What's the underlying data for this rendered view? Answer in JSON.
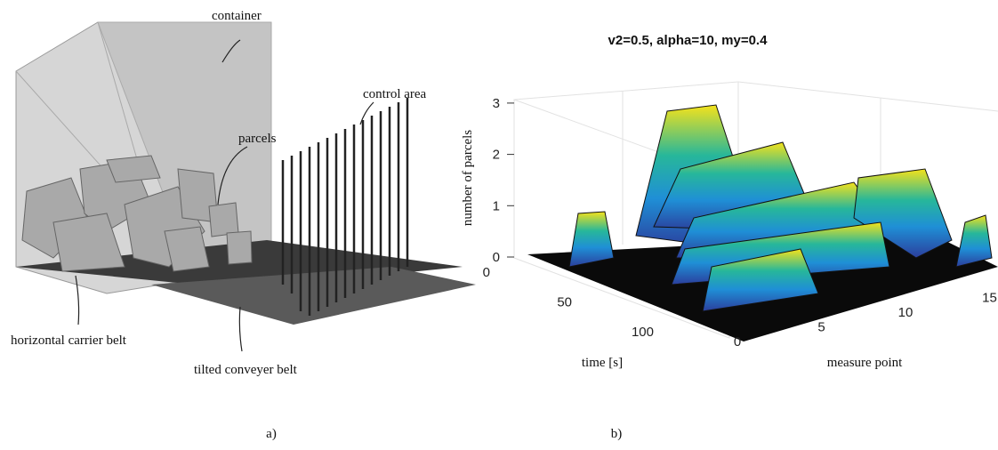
{
  "panel_a": {
    "labels": {
      "container": "container",
      "control_area": "control area",
      "parcels": "parcels",
      "horizontal_belt": "horizontal carrier belt",
      "tilted_belt": "tilted conveyer belt"
    },
    "caption": "a)"
  },
  "panel_b": {
    "title": "v2=0.5, alpha=10, my=0.4",
    "z_label": "number of parcels",
    "x_label": "time [s]",
    "y_label": "measure point",
    "z_ticks": [
      0,
      1,
      2,
      3
    ],
    "time_ticks": [
      0,
      50,
      100
    ],
    "point_ticks": [
      0,
      5,
      10,
      15
    ],
    "caption": "b)"
  }
}
